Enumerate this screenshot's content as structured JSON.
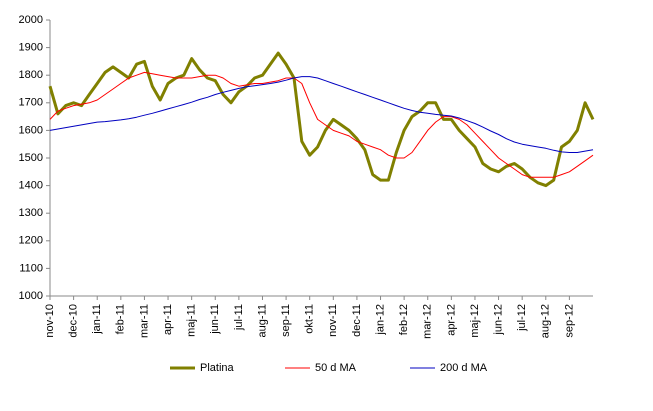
{
  "chart_data": {
    "type": "line",
    "categories": [
      "nov-10",
      null,
      null,
      "dec-10",
      null,
      null,
      "jan-11",
      null,
      null,
      "feb-11",
      null,
      null,
      "mar-11",
      null,
      null,
      "apr-11",
      null,
      null,
      "maj-11",
      null,
      null,
      "jun-11",
      null,
      null,
      "jul-11",
      null,
      null,
      "aug-11",
      null,
      null,
      "sep-11",
      null,
      null,
      "okt-11",
      null,
      null,
      "nov-11",
      null,
      null,
      "dec-11",
      null,
      null,
      "jan-12",
      null,
      null,
      "feb-12",
      null,
      null,
      "mar-12",
      null,
      null,
      "apr-12",
      null,
      null,
      "maj-12",
      null,
      null,
      "jun-12",
      null,
      null,
      "jul-12",
      null,
      null,
      "aug-12",
      null,
      null,
      "sep-12",
      null,
      null,
      null
    ],
    "series": [
      {
        "name": "Platina",
        "color": "#808000",
        "width": 3,
        "values": [
          1760,
          1660,
          1690,
          1700,
          1690,
          1730,
          1770,
          1810,
          1830,
          1810,
          1790,
          1840,
          1850,
          1760,
          1710,
          1770,
          1790,
          1800,
          1860,
          1820,
          1790,
          1780,
          1730,
          1700,
          1740,
          1760,
          1790,
          1800,
          1840,
          1880,
          1840,
          1790,
          1560,
          1510,
          1540,
          1600,
          1640,
          1620,
          1600,
          1570,
          1530,
          1440,
          1420,
          1420,
          1520,
          1600,
          1650,
          1670,
          1700,
          1700,
          1640,
          1640,
          1600,
          1570,
          1540,
          1480,
          1460,
          1450,
          1470,
          1480,
          1460,
          1430,
          1410,
          1400,
          1420,
          1540,
          1560,
          1600,
          1700,
          1640
        ]
      },
      {
        "name": "50 d MA",
        "color": "#ff0000",
        "width": 1,
        "values": [
          1640,
          1670,
          1680,
          1690,
          1695,
          1700,
          1710,
          1730,
          1750,
          1770,
          1790,
          1800,
          1810,
          1805,
          1800,
          1795,
          1790,
          1790,
          1790,
          1795,
          1800,
          1800,
          1790,
          1770,
          1760,
          1765,
          1770,
          1770,
          1775,
          1780,
          1790,
          1790,
          1770,
          1700,
          1640,
          1620,
          1600,
          1590,
          1580,
          1560,
          1550,
          1540,
          1530,
          1510,
          1500,
          1500,
          1520,
          1560,
          1600,
          1630,
          1650,
          1650,
          1640,
          1620,
          1590,
          1560,
          1530,
          1500,
          1480,
          1460,
          1440,
          1430,
          1430,
          1430,
          1430,
          1440,
          1450,
          1470,
          1490,
          1510
        ]
      },
      {
        "name": "200 d MA",
        "color": "#0000c0",
        "width": 1,
        "values": [
          1600,
          1605,
          1610,
          1615,
          1620,
          1625,
          1630,
          1632,
          1635,
          1638,
          1642,
          1648,
          1655,
          1662,
          1670,
          1678,
          1686,
          1694,
          1702,
          1712,
          1720,
          1730,
          1738,
          1745,
          1752,
          1758,
          1762,
          1766,
          1770,
          1775,
          1782,
          1790,
          1795,
          1795,
          1790,
          1780,
          1770,
          1760,
          1750,
          1740,
          1730,
          1720,
          1710,
          1700,
          1690,
          1680,
          1672,
          1666,
          1662,
          1658,
          1655,
          1652,
          1645,
          1635,
          1625,
          1612,
          1598,
          1585,
          1570,
          1558,
          1550,
          1545,
          1540,
          1535,
          1528,
          1522,
          1520,
          1520,
          1525,
          1530
        ]
      }
    ],
    "ylim": [
      1000,
      2000
    ],
    "yticks": [
      1000,
      1100,
      1200,
      1300,
      1400,
      1500,
      1600,
      1700,
      1800,
      1900,
      2000
    ],
    "grid": false,
    "legend": "bottom"
  }
}
